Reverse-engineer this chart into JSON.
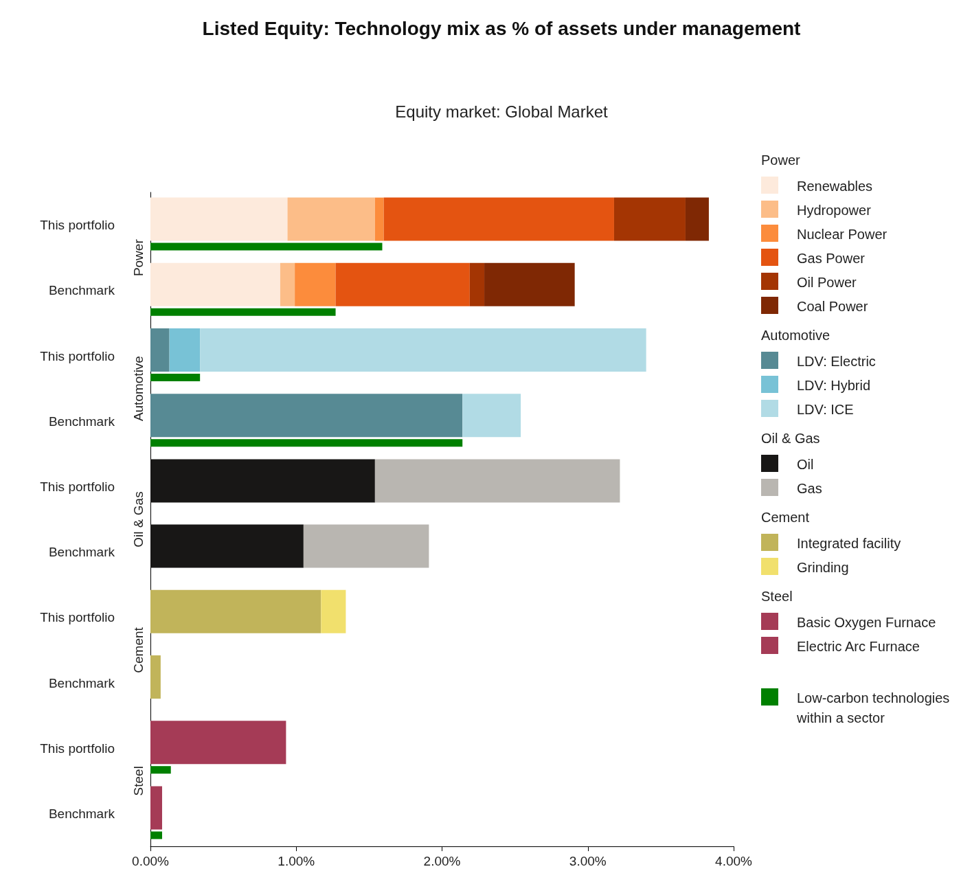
{
  "chart_data": {
    "type": "bar",
    "orientation": "horizontal",
    "title": "Listed Equity: Technology mix as % of assets under management",
    "subtitle": "Equity market: Global Market",
    "categories": [
      "This portfolio",
      "Benchmark",
      "This portfolio",
      "Benchmark",
      "This portfolio",
      "Benchmark",
      "This portfolio",
      "Benchmark",
      "This portfolio",
      "Benchmark"
    ],
    "annotations": [
      "Power",
      "Automotive",
      "Oil & Gas",
      "Cement",
      "Steel"
    ],
    "series": [
      {
        "name": "Renewables",
        "color": "#fdeadc",
        "values": [
          0.94,
          0.89,
          null,
          null,
          null,
          null,
          null,
          null,
          null,
          null
        ],
        "base": [
          0,
          0,
          null,
          null,
          null,
          null,
          null,
          null,
          null,
          null
        ]
      },
      {
        "name": "Hydropower",
        "color": "#fcbd88",
        "values": [
          0.6,
          0.1,
          null,
          null,
          null,
          null,
          null,
          null,
          null,
          null
        ],
        "base": [
          0.94,
          0.89,
          null,
          null,
          null,
          null,
          null,
          null,
          null,
          null
        ]
      },
      {
        "name": "Nuclear Power",
        "color": "#fc8c3c",
        "values": [
          0.06,
          0.28,
          null,
          null,
          null,
          null,
          null,
          null,
          null,
          null
        ],
        "base": [
          1.54,
          0.99,
          null,
          null,
          null,
          null,
          null,
          null,
          null,
          null
        ]
      },
      {
        "name": "Gas Power",
        "color": "#e45411",
        "values": [
          1.58,
          0.92,
          null,
          null,
          null,
          null,
          null,
          null,
          null,
          null
        ],
        "base": [
          1.6,
          1.27,
          null,
          null,
          null,
          null,
          null,
          null,
          null,
          null
        ]
      },
      {
        "name": "Oil Power",
        "color": "#a43503",
        "values": [
          0.49,
          0.1,
          null,
          null,
          null,
          null,
          null,
          null,
          null,
          null
        ],
        "base": [
          3.18,
          2.19,
          null,
          null,
          null,
          null,
          null,
          null,
          null,
          null
        ]
      },
      {
        "name": "Coal Power",
        "color": "#7f2804",
        "values": [
          0.16,
          0.62,
          null,
          null,
          null,
          null,
          null,
          null,
          null,
          null
        ],
        "base": [
          3.67,
          2.29,
          null,
          null,
          null,
          null,
          null,
          null,
          null,
          null
        ]
      },
      {
        "name": "LDV: Electric",
        "color": "#578a94",
        "values": [
          null,
          null,
          0.13,
          2.14,
          null,
          null,
          null,
          null,
          null,
          null
        ],
        "base": [
          null,
          null,
          0,
          0,
          null,
          null,
          null,
          null,
          null,
          null
        ]
      },
      {
        "name": "LDV: Hybrid",
        "color": "#78c2d6",
        "values": [
          null,
          null,
          0.21,
          null,
          null,
          null,
          null,
          null,
          null,
          null
        ],
        "base": [
          null,
          null,
          0.13,
          null,
          null,
          null,
          null,
          null,
          null,
          null
        ]
      },
      {
        "name": "LDV: ICE",
        "color": "#b1dbe5",
        "values": [
          null,
          null,
          3.06,
          0.4,
          null,
          null,
          null,
          null,
          null,
          null
        ],
        "base": [
          null,
          null,
          0.34,
          2.14,
          null,
          null,
          null,
          null,
          null,
          null
        ]
      },
      {
        "name": "Oil",
        "color": "#181716",
        "values": [
          null,
          null,
          null,
          null,
          1.54,
          1.05,
          null,
          null,
          null,
          null
        ],
        "base": [
          null,
          null,
          null,
          null,
          0,
          0,
          null,
          null,
          null,
          null
        ]
      },
      {
        "name": "Gas",
        "color": "#b9b6b1",
        "values": [
          null,
          null,
          null,
          null,
          1.68,
          0.86,
          null,
          null,
          null,
          null
        ],
        "base": [
          null,
          null,
          null,
          null,
          1.54,
          1.05,
          null,
          null,
          null,
          null
        ]
      },
      {
        "name": "Integrated facility",
        "color": "#c1b45a",
        "values": [
          null,
          null,
          null,
          null,
          null,
          null,
          1.17,
          0.07,
          null,
          null
        ],
        "base": [
          null,
          null,
          null,
          null,
          null,
          null,
          0,
          0,
          null,
          null
        ]
      },
      {
        "name": "Grinding",
        "color": "#f1e06d",
        "values": [
          null,
          null,
          null,
          null,
          null,
          null,
          0.17,
          null,
          null,
          null
        ],
        "base": [
          null,
          null,
          null,
          null,
          null,
          null,
          1.17,
          null,
          null,
          null
        ]
      },
      {
        "name": "Basic Oxygen Furnace",
        "color": "#a53b56",
        "values": [
          null,
          null,
          null,
          null,
          null,
          null,
          null,
          null,
          0.93,
          0.08
        ],
        "base": [
          null,
          null,
          null,
          null,
          null,
          null,
          null,
          null,
          0,
          0
        ]
      },
      {
        "name": "Electric Arc Furnace",
        "color": "#a53b56",
        "values": [
          null,
          null,
          null,
          null,
          null,
          null,
          null,
          null,
          null,
          null
        ]
      },
      {
        "name": "Low-carbon technologies within a sector",
        "color": "#008000",
        "values": [
          1.59,
          1.27,
          0.34,
          2.14,
          null,
          null,
          null,
          null,
          0.14,
          0.08
        ],
        "base": [
          0,
          0,
          0,
          0,
          null,
          null,
          null,
          null,
          0,
          0
        ]
      }
    ],
    "xlim": [
      0,
      4
    ],
    "xticks": [
      {
        "value": 0,
        "label": "0.00%"
      },
      {
        "value": 1,
        "label": "1.00%"
      },
      {
        "value": 2,
        "label": "2.00%"
      },
      {
        "value": 3,
        "label": "3.00%"
      },
      {
        "value": 4,
        "label": "4.00%"
      }
    ],
    "grid": false,
    "legend": "right"
  }
}
